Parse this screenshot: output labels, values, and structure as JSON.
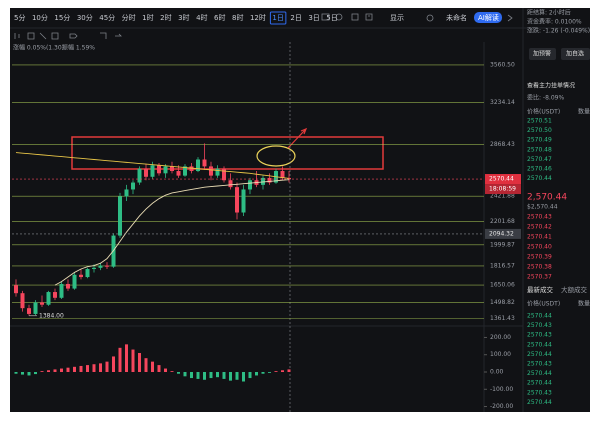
{
  "toolbar": {
    "intervals": [
      "5分",
      "10分",
      "15分",
      "30分",
      "45分",
      "分时",
      "1时",
      "2时",
      "3时",
      "4时",
      "6时",
      "8时",
      "12时",
      "1日",
      "2日",
      "3日",
      "5日"
    ],
    "active": "1日",
    "display": "显示",
    "layout_name": "未命名",
    "ai": "AI解读"
  },
  "info": {
    "change": "涨幅 0.05%(1.30)",
    "amplitude": "振幅 1.59%"
  },
  "chart_data": {
    "type": "candlestick",
    "ylim": [
      1330,
      3690
    ],
    "yticks": [
      {
        "value": 3560.5,
        "label": "3560.50"
      },
      3234.14,
      2868.43,
      2421.88,
      2201.68,
      1999.87,
      1816.57,
      1650.06,
      1498.82,
      1361.43
    ],
    "grid": true,
    "grid_color": "#b5d65a",
    "up_color": "#2ebd85",
    "down_color": "#f6465d",
    "candles": [
      [
        1650,
        1700,
        1550,
        1580
      ],
      [
        1580,
        1600,
        1420,
        1450
      ],
      [
        1450,
        1480,
        1384,
        1400
      ],
      [
        1400,
        1520,
        1390,
        1500
      ],
      [
        1500,
        1560,
        1460,
        1480
      ],
      [
        1480,
        1600,
        1470,
        1590
      ],
      [
        1590,
        1620,
        1520,
        1540
      ],
      [
        1540,
        1680,
        1530,
        1660
      ],
      [
        1660,
        1700,
        1600,
        1620
      ],
      [
        1620,
        1760,
        1610,
        1740
      ],
      [
        1740,
        1790,
        1700,
        1720
      ],
      [
        1720,
        1800,
        1710,
        1790
      ],
      [
        1790,
        1830,
        1760,
        1800
      ],
      [
        1800,
        1840,
        1780,
        1820
      ],
      [
        1820,
        1850,
        1790,
        1810
      ],
      [
        1810,
        2100,
        1800,
        2080
      ],
      [
        2080,
        2450,
        2060,
        2420
      ],
      [
        2420,
        2520,
        2380,
        2480
      ],
      [
        2480,
        2560,
        2440,
        2540
      ],
      [
        2540,
        2680,
        2520,
        2660
      ],
      [
        2660,
        2700,
        2560,
        2590
      ],
      [
        2590,
        2720,
        2570,
        2690
      ],
      [
        2690,
        2710,
        2600,
        2620
      ],
      [
        2620,
        2700,
        2580,
        2680
      ],
      [
        2680,
        2720,
        2620,
        2640
      ],
      [
        2640,
        2690,
        2580,
        2600
      ],
      [
        2600,
        2700,
        2590,
        2680
      ],
      [
        2680,
        2710,
        2620,
        2640
      ],
      [
        2640,
        2760,
        2630,
        2740
      ],
      [
        2740,
        2880,
        2650,
        2680
      ],
      [
        2680,
        2720,
        2560,
        2600
      ],
      [
        2600,
        2690,
        2580,
        2660
      ],
      [
        2660,
        2680,
        2540,
        2560
      ],
      [
        2560,
        2620,
        2480,
        2500
      ],
      [
        2500,
        2540,
        2220,
        2280
      ],
      [
        2280,
        2520,
        2250,
        2480
      ],
      [
        2480,
        2580,
        2440,
        2560
      ],
      [
        2560,
        2640,
        2500,
        2520
      ],
      [
        2520,
        2600,
        2480,
        2580
      ],
      [
        2580,
        2620,
        2520,
        2540
      ],
      [
        2540,
        2660,
        2530,
        2640
      ],
      [
        2640,
        2680,
        2560,
        2580
      ],
      [
        2580,
        2640,
        2540,
        2570.44
      ]
    ],
    "series": [
      {
        "color": "#e8c547",
        "values": [
          2800,
          2795,
          2790,
          2785,
          2780,
          2775,
          2770,
          2765,
          2760,
          2755,
          2750,
          2745,
          2740,
          2735,
          2730,
          2725,
          2720,
          2715,
          2710,
          2705,
          2700,
          2695,
          2690,
          2685,
          2680,
          2675,
          2670,
          2665,
          2660,
          2655,
          2650,
          2645,
          2640,
          2635,
          2630,
          2625,
          2620,
          2612,
          2605,
          2598,
          2590,
          2583,
          2576
        ]
      },
      {
        "color": "#e9dcb4",
        "values": [
          null,
          null,
          null,
          null,
          null,
          null,
          1650,
          1680,
          1720,
          1760,
          1790,
          1810,
          1820,
          1840,
          1880,
          1950,
          2030,
          2110,
          2180,
          2250,
          2310,
          2360,
          2400,
          2430,
          2450,
          2460,
          2470,
          2480,
          2490,
          2500,
          2505,
          2510,
          2515,
          2520,
          2525,
          2530,
          2535,
          2540,
          2545,
          2550,
          2555,
          2560,
          2565
        ]
      }
    ],
    "price_marker": {
      "value": 2570.44,
      "label": "2570.44",
      "time": "18:08:59"
    },
    "crosshair": {
      "value": 2094.32,
      "label": "2094.32"
    },
    "low_label": {
      "value": 1384,
      "label": "1384.00"
    },
    "macd": {
      "ylim": [
        -220,
        220
      ],
      "yticks": [
        {
          "value": 200,
          "label": "200.00"
        },
        {
          "value": 100,
          "label": "100.00"
        },
        {
          "value": 0,
          "label": "0.00"
        },
        {
          "value": -100,
          "label": "-100.00"
        },
        {
          "value": -200,
          "label": "-200.00"
        }
      ],
      "values": [
        -10,
        -15,
        -20,
        -12,
        5,
        10,
        15,
        20,
        25,
        30,
        35,
        40,
        45,
        50,
        60,
        90,
        140,
        160,
        130,
        110,
        80,
        60,
        40,
        20,
        5,
        -10,
        -25,
        -35,
        -40,
        -45,
        -35,
        -30,
        -40,
        -50,
        -45,
        -55,
        -35,
        -20,
        -10,
        -5,
        5,
        10,
        15
      ]
    }
  },
  "panel": {
    "settle": "距结算: 2小时后",
    "funding": "资金费率: 0.0100%",
    "change": "涨跌: -1.26 (-0.049%)",
    "buttons": [
      "加预警",
      "加自选"
    ],
    "depth_title": "查看主力挂单情况",
    "ratio": "委比: -8.09%",
    "price_header": "价格(USDT)",
    "qty_header": "数量",
    "asks": [
      "2570.51",
      "2570.50",
      "2570.49",
      "2570.48",
      "2570.47",
      "2570.46",
      "2570.44"
    ],
    "last": "2,570.44",
    "last_usd": "$2,570.44",
    "bids": [
      "2570.43",
      "2570.42",
      "2570.41",
      "2570.40",
      "2570.39",
      "2570.38",
      "2570.37"
    ],
    "tabs": [
      "最新成交",
      "大额成交"
    ],
    "trade_price_header": "价格(USDT)",
    "trade_qty_header": "数量",
    "trades": [
      "2570.44",
      "2570.43",
      "2570.43",
      "2570.44",
      "2570.44",
      "2570.43",
      "2570.44",
      "2570.44",
      "2570.43",
      "2570.44"
    ]
  }
}
